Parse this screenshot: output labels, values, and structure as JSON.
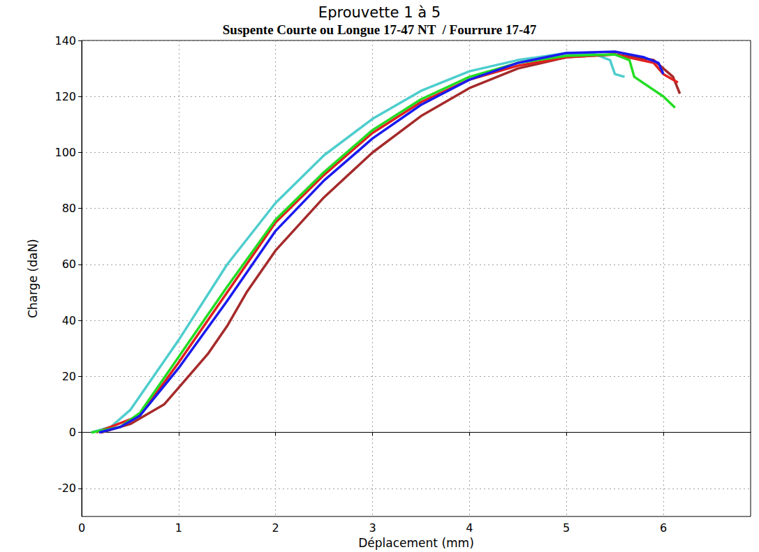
{
  "chart_data": {
    "type": "line",
    "title": "Eprouvette 1 à 5",
    "subtitle": "Suspente Courte ou Longue 17-47 NT  / Fourrure 17-47",
    "x_label": "Déplacement (mm)",
    "y_label": "Charge (daN)",
    "xlim": [
      0,
      6.9
    ],
    "xticks": [
      0,
      1,
      2,
      3,
      4,
      5,
      6
    ],
    "ylim": [
      -30,
      140
    ],
    "yticks": [
      -20,
      0,
      20,
      40,
      60,
      80,
      100,
      120,
      140
    ],
    "grid": true,
    "series": [
      {
        "color": "#4ecdcd",
        "x": [
          0.1,
          0.3,
          0.5,
          1,
          1.5,
          2,
          2.5,
          3,
          3.5,
          4,
          4.5,
          5,
          5.3,
          5.45,
          5.5,
          5.6
        ],
        "values": [
          0,
          2,
          8,
          33,
          60,
          82,
          99,
          112,
          122,
          129,
          133,
          135.5,
          135,
          133,
          128,
          127
        ]
      },
      {
        "color": "#a52a2a",
        "x": [
          0.2,
          0.5,
          0.85,
          1,
          1.3,
          1.5,
          1.7,
          2,
          2.5,
          3,
          3.5,
          4,
          4.5,
          5,
          5.5,
          5.9,
          6.1,
          6.17
        ],
        "values": [
          0,
          3,
          10,
          16,
          28,
          38,
          50,
          65,
          84,
          100,
          113,
          123,
          130,
          134,
          135,
          133,
          127,
          121
        ]
      },
      {
        "color": "#e02020",
        "x": [
          0.15,
          0.6,
          1,
          1.5,
          2,
          2.5,
          3,
          3.5,
          4,
          4.5,
          5,
          5.5,
          5.9,
          6,
          6.1,
          6.15
        ],
        "values": [
          0,
          6,
          25,
          50,
          75,
          92,
          107,
          118,
          126,
          131,
          134,
          135,
          132,
          128,
          126,
          125
        ]
      },
      {
        "color": "#22dd22",
        "x": [
          0.1,
          0.4,
          0.6,
          1,
          1.5,
          2,
          2.5,
          3,
          3.5,
          4,
          4.5,
          5,
          5.5,
          5.65,
          5.7,
          6,
          6.12
        ],
        "values": [
          0,
          2,
          7,
          27,
          52,
          76,
          93,
          108,
          119,
          127,
          132,
          134.5,
          135,
          133,
          127,
          120,
          116
        ]
      },
      {
        "color": "#1a1aee",
        "x": [
          0.18,
          0.4,
          0.6,
          1,
          1.5,
          2,
          2.5,
          3,
          3.5,
          4,
          4.5,
          5,
          5.5,
          5.8,
          5.95,
          6
        ],
        "values": [
          0,
          2,
          6,
          23,
          47,
          72,
          90,
          105,
          117,
          126,
          132,
          135.5,
          136,
          134,
          132,
          128
        ]
      }
    ]
  }
}
